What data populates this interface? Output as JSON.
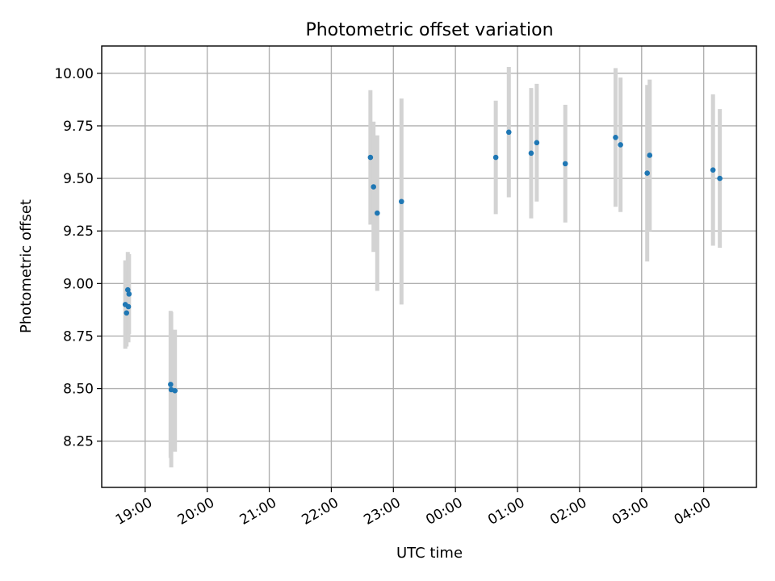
{
  "chart_data": {
    "type": "scatter",
    "title": "Photometric offset variation",
    "xlabel": "UTC time",
    "ylabel": "Photometric offset",
    "xlim_hours": [
      18.3,
      28.85
    ],
    "ylim": [
      8.03,
      10.13
    ],
    "grid": true,
    "yticks": [
      {
        "value": 8.25,
        "label": "8.25"
      },
      {
        "value": 8.5,
        "label": "8.50"
      },
      {
        "value": 8.75,
        "label": "8.75"
      },
      {
        "value": 9.0,
        "label": "9.00"
      },
      {
        "value": 9.25,
        "label": "9.25"
      },
      {
        "value": 9.5,
        "label": "9.50"
      },
      {
        "value": 9.75,
        "label": "9.75"
      },
      {
        "value": 10.0,
        "label": "10.00"
      }
    ],
    "xticks": [
      {
        "value": 19,
        "label": "19:00"
      },
      {
        "value": 20,
        "label": "20:00"
      },
      {
        "value": 21,
        "label": "21:00"
      },
      {
        "value": 22,
        "label": "22:00"
      },
      {
        "value": 23,
        "label": "23:00"
      },
      {
        "value": 24,
        "label": "00:00"
      },
      {
        "value": 25,
        "label": "01:00"
      },
      {
        "value": 26,
        "label": "02:00"
      },
      {
        "value": 27,
        "label": "03:00"
      },
      {
        "value": 28,
        "label": "04:00"
      }
    ],
    "series": [
      {
        "marker_color": "#1f77b4",
        "errorbar_color": "#d3d3d3",
        "points": [
          {
            "x": 18.68,
            "y": 8.9,
            "err": 0.21
          },
          {
            "x": 18.7,
            "y": 8.86,
            "err": 0.16
          },
          {
            "x": 18.72,
            "y": 8.97,
            "err": 0.18
          },
          {
            "x": 18.73,
            "y": 8.89,
            "err": 0.17
          },
          {
            "x": 18.74,
            "y": 8.95,
            "err": 0.19
          },
          {
            "x": 19.41,
            "y": 8.52,
            "err": 0.35
          },
          {
            "x": 19.42,
            "y": 8.495,
            "err": 0.37
          },
          {
            "x": 19.48,
            "y": 8.49,
            "err": 0.29
          },
          {
            "x": 22.63,
            "y": 9.6,
            "err": 0.32
          },
          {
            "x": 22.68,
            "y": 9.46,
            "err": 0.31
          },
          {
            "x": 22.74,
            "y": 9.335,
            "err": 0.37
          },
          {
            "x": 23.13,
            "y": 9.39,
            "err": 0.49
          },
          {
            "x": 24.65,
            "y": 9.6,
            "err": 0.27
          },
          {
            "x": 24.86,
            "y": 9.72,
            "err": 0.31
          },
          {
            "x": 25.22,
            "y": 9.62,
            "err": 0.31
          },
          {
            "x": 25.31,
            "y": 9.67,
            "err": 0.28
          },
          {
            "x": 25.77,
            "y": 9.57,
            "err": 0.28
          },
          {
            "x": 26.58,
            "y": 9.695,
            "err": 0.33
          },
          {
            "x": 26.66,
            "y": 9.66,
            "err": 0.32
          },
          {
            "x": 27.09,
            "y": 9.525,
            "err": 0.42
          },
          {
            "x": 27.13,
            "y": 9.61,
            "err": 0.36
          },
          {
            "x": 28.15,
            "y": 9.54,
            "err": 0.36
          },
          {
            "x": 28.26,
            "y": 9.5,
            "err": 0.33
          }
        ]
      }
    ]
  }
}
